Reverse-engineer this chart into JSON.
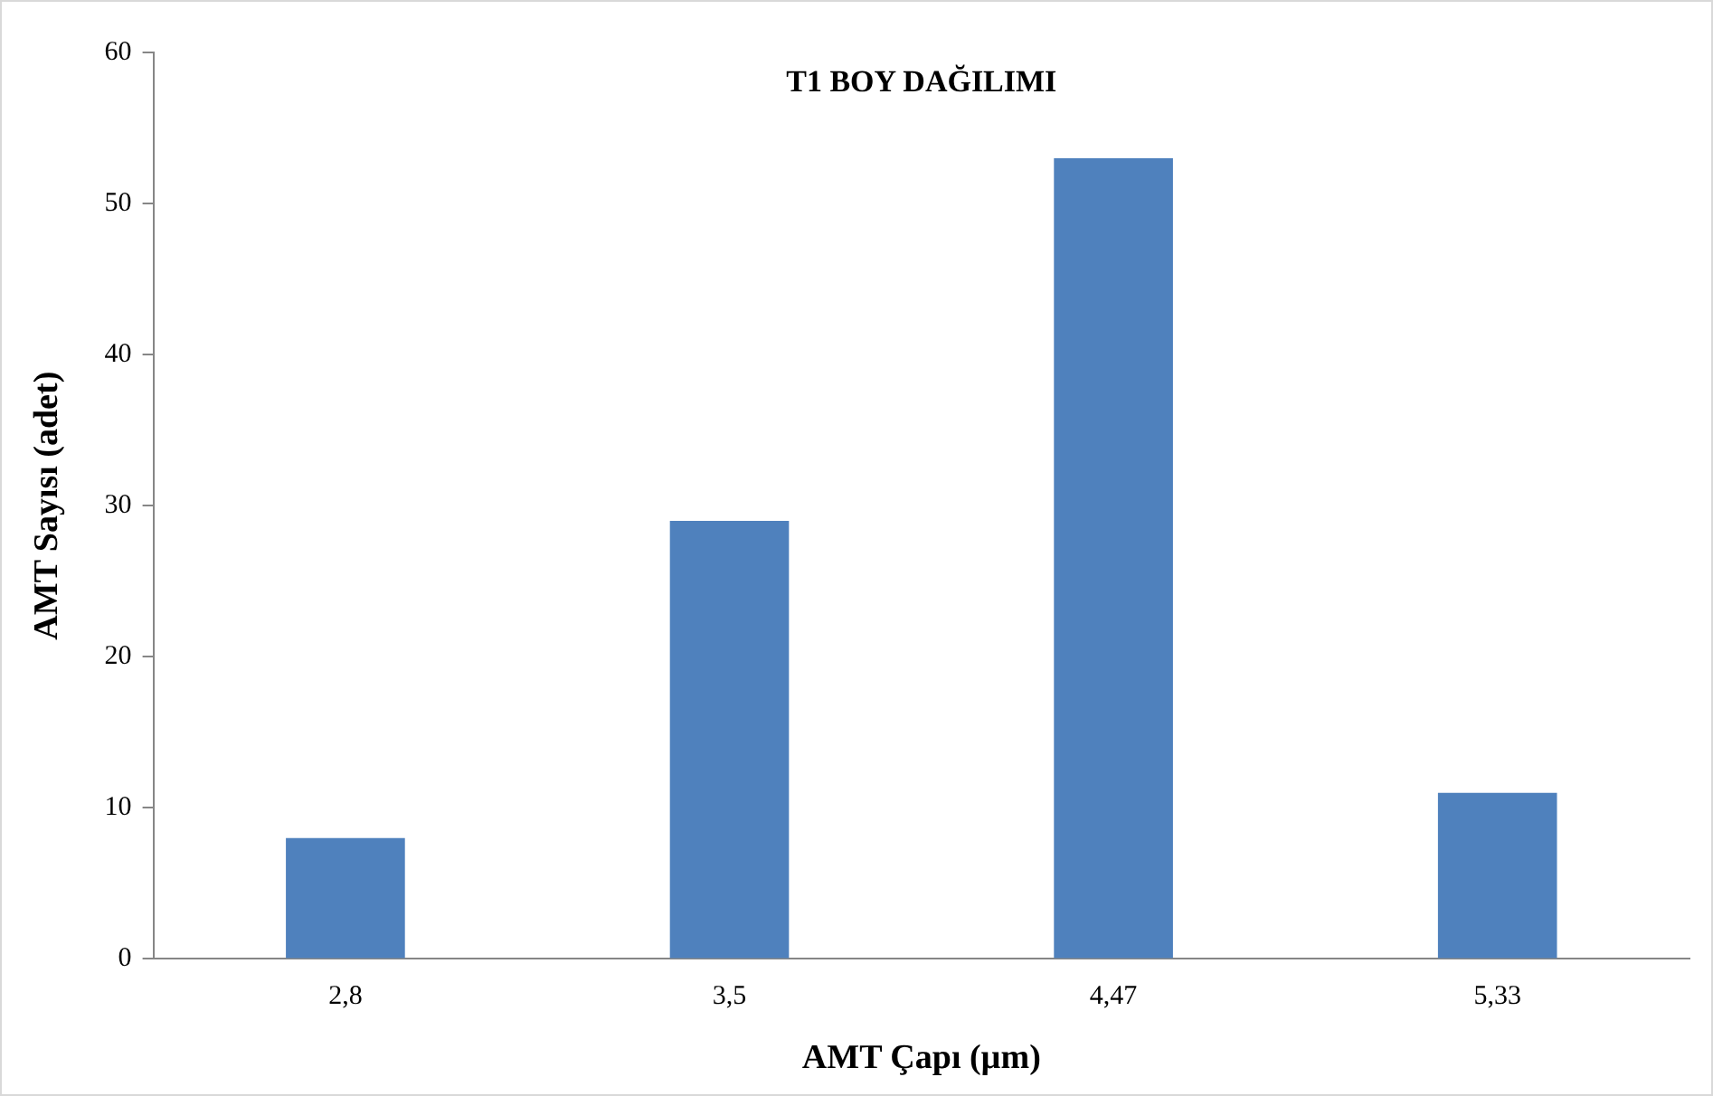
{
  "chart_data": {
    "type": "bar",
    "title": "T1 BOY DAĞILIMI",
    "xlabel": "AMT Çapı (µm)",
    "ylabel": "AMT Sayısı (adet)",
    "categories": [
      "2,8",
      "3,5",
      "4,47",
      "5,33"
    ],
    "values": [
      8,
      29,
      53,
      11
    ],
    "color": "#4f81bd",
    "ylim": [
      0,
      60
    ],
    "yticks": [
      0,
      10,
      20,
      30,
      40,
      50,
      60
    ],
    "grid": false,
    "legend": false
  }
}
